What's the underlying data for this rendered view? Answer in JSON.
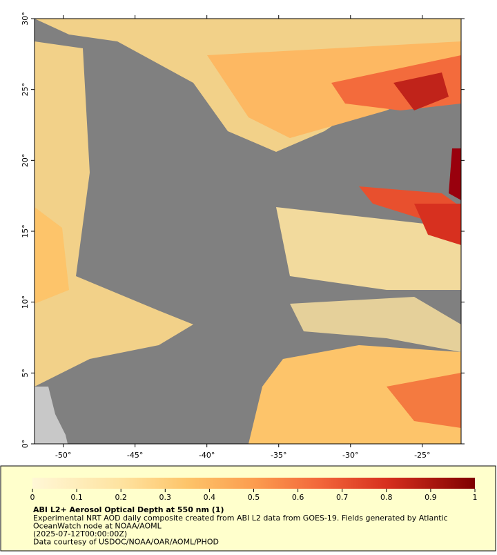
{
  "map": {
    "xlim": [
      -52,
      -22.3
    ],
    "ylim": [
      0,
      30
    ],
    "xticks": [
      {
        "value": -50,
        "label": "-50°"
      },
      {
        "value": -45,
        "label": "-45°"
      },
      {
        "value": -40,
        "label": "-40°"
      },
      {
        "value": -35,
        "label": "-35°"
      },
      {
        "value": -30,
        "label": "-30°"
      },
      {
        "value": -25,
        "label": "-25°"
      }
    ],
    "yticks": [
      {
        "value": 0,
        "label": "0°"
      },
      {
        "value": 5,
        "label": "5°"
      },
      {
        "value": 10,
        "label": "10°"
      },
      {
        "value": 15,
        "label": "15°"
      },
      {
        "value": 20,
        "label": "20°"
      },
      {
        "value": 25,
        "label": "25°"
      },
      {
        "value": 30,
        "label": "30°"
      }
    ]
  },
  "colorbar": {
    "lim": [
      0,
      1
    ],
    "ticks": [
      0,
      0.1,
      0.2,
      0.3,
      0.4,
      0.5,
      0.6,
      0.7,
      0.8,
      0.9,
      1
    ]
  },
  "legend": {
    "title": "ABI L2+ Aerosol Optical Depth at 550 nm (1)",
    "lines": [
      "Experimental NRT AOD daily composite created from ABI L2 data from GOES-19. Fields generated by Atlantic",
      "OceanWatch node at NOAA/AOML",
      "(2025-07-12T00:00:00Z)",
      "Data courtesy of USDOC/NOAA/OAR/AOML/PHOD"
    ]
  }
}
